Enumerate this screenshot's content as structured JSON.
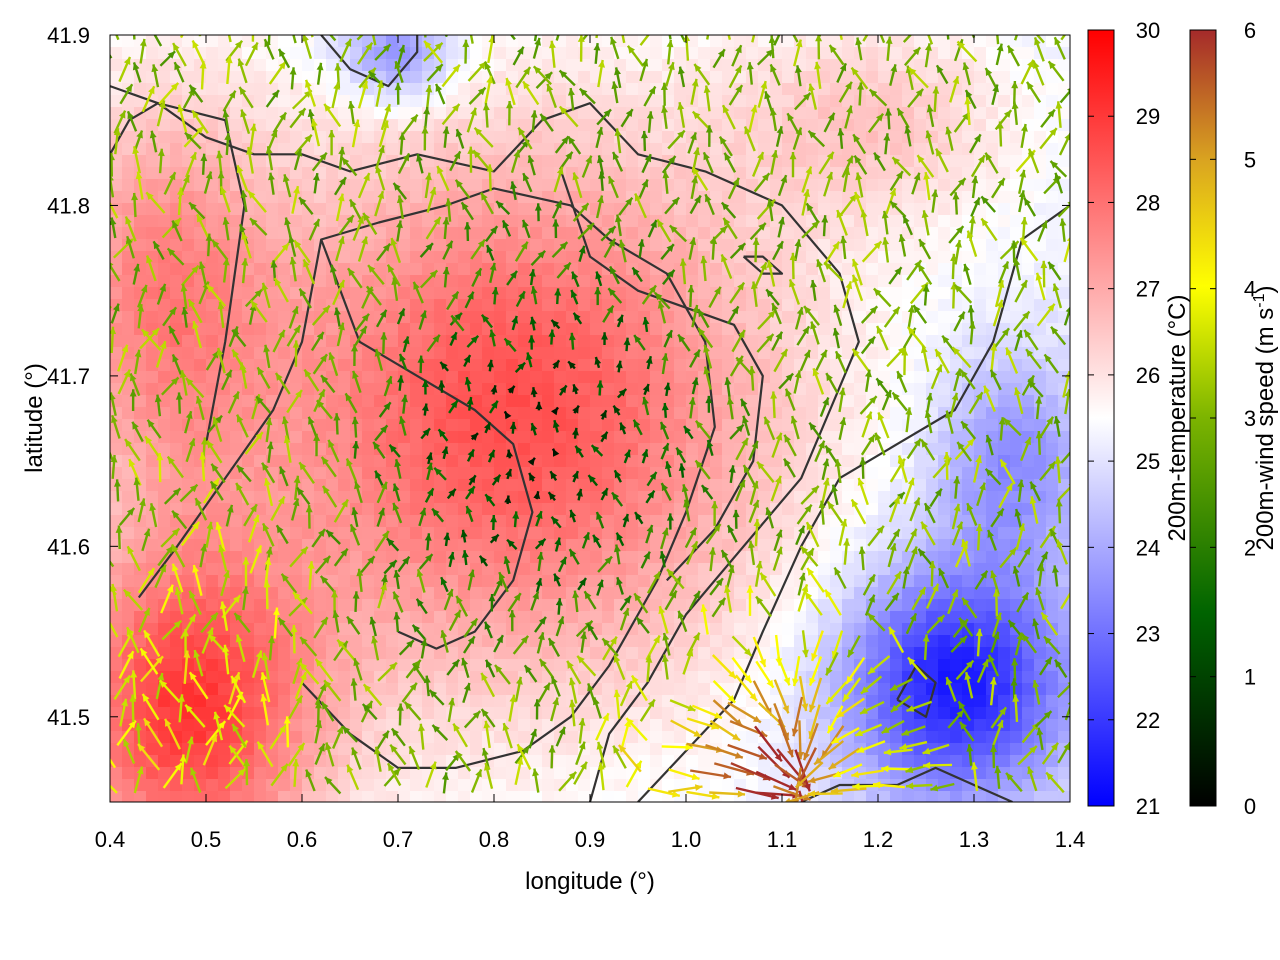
{
  "chart_data": {
    "type": "heatmap",
    "xlabel": "longitude (°)",
    "ylabel": "latitude (°)",
    "xlim": [
      0.4,
      1.4
    ],
    "ylim": [
      41.45,
      41.9
    ],
    "xticks": [
      "0.4",
      "0.5",
      "0.6",
      "0.7",
      "0.8",
      "0.9",
      "1.0",
      "1.1",
      "1.2",
      "1.3",
      "1.4"
    ],
    "yticks": [
      "41.5",
      "41.6",
      "41.7",
      "41.8",
      "41.9"
    ],
    "grid": false,
    "heatmap_field": {
      "quantity": "200m-temperature",
      "unit": "°C",
      "description_values": [
        {
          "lon": 0.85,
          "lat": 41.68,
          "value": 28.5
        },
        {
          "lon": 0.5,
          "lat": 41.5,
          "value": 29.0
        },
        {
          "lon": 0.7,
          "lat": 41.88,
          "value": 25.0
        },
        {
          "lon": 1.3,
          "lat": 41.53,
          "value": 22.0
        },
        {
          "lon": 1.35,
          "lat": 41.7,
          "value": 25.0
        },
        {
          "lon": 1.25,
          "lat": 41.85,
          "value": 26.5
        }
      ]
    },
    "vector_field": {
      "quantity": "200m-wind speed",
      "description": "wind vectors; speeds 0-2 in central plateau (dark green/black), 2-4 elsewhere (green/yellow), up to 6 near (1.15, 41.47) (brown)"
    },
    "colorbars": [
      {
        "label": "200m-temperature (°C)",
        "range": [
          21,
          30
        ],
        "ticks": [
          "21",
          "22",
          "23",
          "24",
          "25",
          "26",
          "27",
          "28",
          "29",
          "30"
        ],
        "colors": [
          "#0000ff",
          "#ffffff",
          "#ff0000"
        ]
      },
      {
        "label_main": "200m-wind speed (m s",
        "label_sup": "-1",
        "label_end": ")",
        "range": [
          0,
          6
        ],
        "ticks": [
          "0",
          "1",
          "2",
          "3",
          "4",
          "5",
          "6"
        ],
        "colors": [
          "#000000",
          "#006400",
          "#7cb400",
          "#ffff00",
          "#daa520",
          "#a52a2a"
        ]
      }
    ]
  }
}
